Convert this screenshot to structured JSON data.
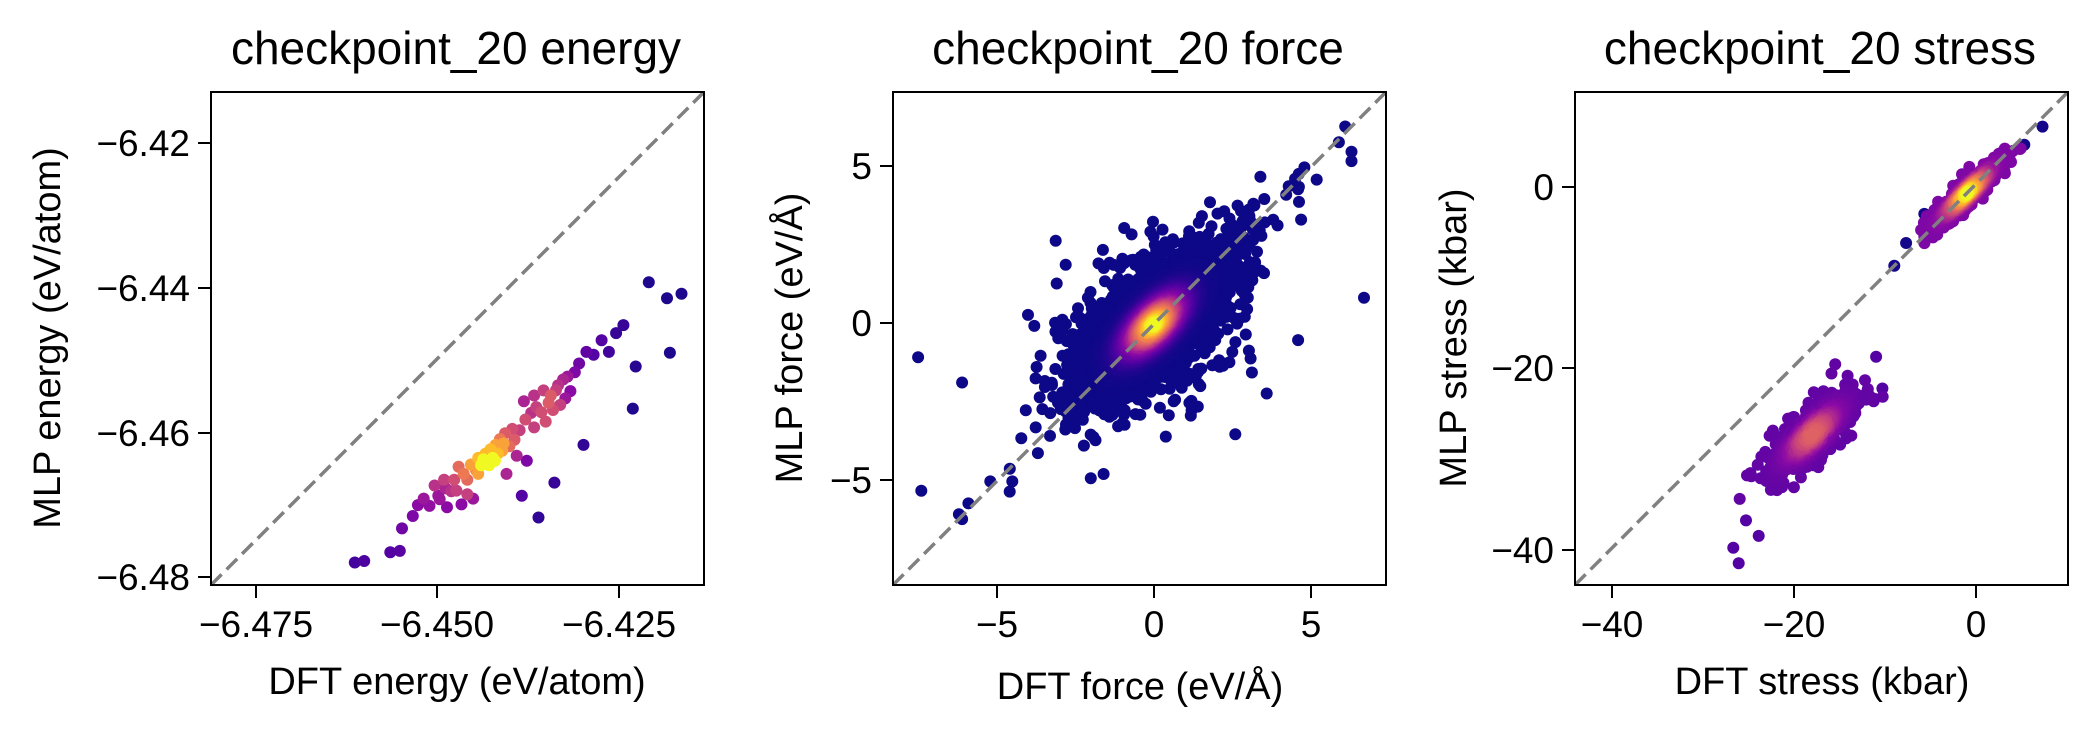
{
  "chart_data": [
    {
      "type": "scatter",
      "title": "checkpoint_20 energy",
      "xlabel": "DFT energy (eV/atom)",
      "ylabel": "MLP energy (eV/atom)",
      "xlim": [
        -6.4813,
        -6.4134
      ],
      "ylim": [
        -6.4813,
        -6.4134
      ],
      "xticks": [
        -6.475,
        -6.45,
        -6.425
      ],
      "xtick_labels": [
        "−6.475",
        "−6.450",
        "−6.425"
      ],
      "yticks": [
        -6.48,
        -6.46,
        -6.44,
        -6.42
      ],
      "ytick_labels": [
        "−6.48",
        "−6.46",
        "−6.44",
        "−6.42"
      ],
      "colormap": "plasma (color = point density)",
      "reference_line": "y = x (grey dashed)",
      "points": [
        [
          -6.4615,
          -6.4782,
          0.15
        ],
        [
          -6.4602,
          -6.478,
          0.18
        ],
        [
          -6.4566,
          -6.4768,
          0.2
        ],
        [
          -6.4553,
          -6.4766,
          0.22
        ],
        [
          -6.455,
          -6.4735,
          0.3
        ],
        [
          -6.4535,
          -6.4718,
          0.35
        ],
        [
          -6.4528,
          -6.4703,
          0.4
        ],
        [
          -6.452,
          -6.4694,
          0.45
        ],
        [
          -6.4512,
          -6.4704,
          0.42
        ],
        [
          -6.4505,
          -6.4676,
          0.55
        ],
        [
          -6.4498,
          -6.4695,
          0.45
        ],
        [
          -6.4492,
          -6.4668,
          0.6
        ],
        [
          -6.4488,
          -6.4706,
          0.4
        ],
        [
          -6.4482,
          -6.4684,
          0.55
        ],
        [
          -6.4478,
          -6.4668,
          0.65
        ],
        [
          -6.4472,
          -6.465,
          0.75
        ],
        [
          -6.4468,
          -6.4702,
          0.4
        ],
        [
          -6.4465,
          -6.466,
          0.8
        ],
        [
          -6.446,
          -6.4668,
          0.75
        ],
        [
          -6.4455,
          -6.4647,
          0.9
        ],
        [
          -6.4452,
          -6.4694,
          0.45
        ],
        [
          -6.4448,
          -6.4655,
          0.85
        ],
        [
          -6.4445,
          -6.4638,
          0.95
        ],
        [
          -6.4441,
          -6.4648,
          1.0
        ],
        [
          -6.4438,
          -6.464,
          1.0
        ],
        [
          -6.4435,
          -6.4632,
          0.95
        ],
        [
          -6.4431,
          -6.4646,
          1.0
        ],
        [
          -6.4428,
          -6.4626,
          0.95
        ],
        [
          -6.4425,
          -6.4638,
          1.0
        ],
        [
          -6.4421,
          -6.462,
          0.9
        ],
        [
          -6.4418,
          -6.4632,
          0.95
        ],
        [
          -6.4415,
          -6.4612,
          0.8
        ],
        [
          -6.4412,
          -6.4628,
          0.9
        ],
        [
          -6.4408,
          -6.4604,
          0.7
        ],
        [
          -6.4406,
          -6.466,
          0.5
        ],
        [
          -6.4402,
          -6.4622,
          0.75
        ],
        [
          -6.4398,
          -6.4598,
          0.65
        ],
        [
          -6.4395,
          -6.4613,
          0.7
        ],
        [
          -6.4392,
          -6.4635,
          0.5
        ],
        [
          -6.4388,
          -6.46,
          0.6
        ],
        [
          -6.4385,
          -6.469,
          0.2
        ],
        [
          -6.4382,
          -6.456,
          0.5
        ],
        [
          -6.4378,
          -6.4642,
          0.35
        ],
        [
          -6.4372,
          -6.4576,
          0.55
        ],
        [
          -6.4368,
          -6.4552,
          0.55
        ],
        [
          -6.4365,
          -6.4568,
          0.6
        ],
        [
          -6.4362,
          -6.472,
          0.1
        ],
        [
          -6.4358,
          -6.4575,
          0.65
        ],
        [
          -6.4355,
          -6.4545,
          0.6
        ],
        [
          -6.4352,
          -6.4588,
          0.65
        ],
        [
          -6.4348,
          -6.4562,
          0.7
        ],
        [
          -6.4345,
          -6.4552,
          0.7
        ],
        [
          -6.4342,
          -6.4572,
          0.65
        ],
        [
          -6.434,
          -6.4672,
          0.12
        ],
        [
          -6.4338,
          -6.4545,
          0.6
        ],
        [
          -6.4335,
          -6.4538,
          0.55
        ],
        [
          -6.4332,
          -6.4565,
          0.6
        ],
        [
          -6.4328,
          -6.453,
          0.5
        ],
        [
          -6.4325,
          -6.4556,
          0.45
        ],
        [
          -6.4322,
          -6.4526,
          0.45
        ],
        [
          -6.4318,
          -6.4546,
          0.4
        ],
        [
          -6.4312,
          -6.452,
          0.35
        ],
        [
          -6.4306,
          -6.4508,
          0.3
        ],
        [
          -6.43,
          -6.462,
          0.1
        ],
        [
          -6.4296,
          -6.4492,
          0.25
        ],
        [
          -6.4286,
          -6.4496,
          0.2
        ],
        [
          -6.4275,
          -6.4476,
          0.2
        ],
        [
          -6.4265,
          -6.4492,
          0.15
        ],
        [
          -6.4255,
          -6.4466,
          0.12
        ],
        [
          -6.4245,
          -6.4455,
          0.12
        ],
        [
          -6.4232,
          -6.457,
          0.05
        ],
        [
          -6.4228,
          -6.4512,
          0.08
        ],
        [
          -6.421,
          -6.4396,
          0.05
        ],
        [
          -6.4185,
          -6.4418,
          0.05
        ],
        [
          -6.4181,
          -6.4493,
          0.05
        ],
        [
          -6.4165,
          -6.4412,
          0.05
        ],
        [
          -6.443,
          -6.4648,
          1.0
        ],
        [
          -6.4422,
          -6.4642,
          1.0
        ],
        [
          -6.4445,
          -6.466,
          0.9
        ],
        [
          -6.441,
          -6.4618,
          0.9
        ],
        [
          -6.446,
          -6.4688,
          0.6
        ],
        [
          -6.4475,
          -6.4683,
          0.6
        ],
        [
          -6.438,
          -6.4585,
          0.65
        ],
        [
          -6.4368,
          -6.4596,
          0.6
        ],
        [
          -6.449,
          -6.468,
          0.5
        ],
        [
          -6.45,
          -6.469,
          0.45
        ]
      ]
    },
    {
      "type": "scatter",
      "title": "checkpoint_20 force",
      "xlabel": "DFT force (eV/Å)",
      "ylabel": "MLP force (eV/Å)",
      "xlim": [
        -8.3,
        7.4
      ],
      "ylim": [
        -8.3,
        7.4
      ],
      "xticks": [
        -5,
        0,
        5
      ],
      "xtick_labels": [
        "−5",
        "0",
        "5"
      ],
      "yticks": [
        -5,
        0,
        5
      ],
      "ytick_labels": [
        "−5",
        "0",
        "5"
      ],
      "colormap": "plasma (color = point density)",
      "reference_line": "y = x (grey dashed)",
      "distribution": {
        "count": 4200,
        "center": [
          0,
          0
        ],
        "spread_along_diagonal": 1.35,
        "spread_across_diagonal": 0.6
      },
      "outliers": [
        [
          -7.5,
          -1.05
        ],
        [
          -6.1,
          -1.85
        ],
        [
          -4.0,
          0.3
        ],
        [
          -3.8,
          -0.05
        ],
        [
          -6.2,
          -6.05
        ],
        [
          -6.1,
          -6.2
        ],
        [
          -5.9,
          -5.7
        ],
        [
          -7.4,
          -5.3
        ],
        [
          -5.2,
          -5.0
        ],
        [
          -3.6,
          -1.0
        ],
        [
          -2.8,
          1.9
        ],
        [
          2.6,
          -3.5
        ],
        [
          3.6,
          -2.2
        ],
        [
          4.6,
          -0.5
        ],
        [
          6.7,
          0.85
        ],
        [
          6.3,
          5.5
        ],
        [
          6.3,
          5.2
        ],
        [
          6.1,
          6.3
        ],
        [
          5.9,
          5.8
        ],
        [
          4.8,
          5.0
        ],
        [
          4.6,
          4.3
        ],
        [
          4.3,
          4.4
        ],
        [
          3.4,
          4.7
        ],
        [
          -2.0,
          -4.9
        ],
        [
          -4.5,
          -5.0
        ]
      ]
    },
    {
      "type": "scatter",
      "title": "checkpoint_20 stress",
      "xlabel": "DFT stress (kbar)",
      "ylabel": "MLP stress (kbar)",
      "xlim": [
        -43.6,
        10.6
      ],
      "ylim": [
        -43.6,
        10.6
      ],
      "xticks": [
        -40,
        -20,
        0
      ],
      "xtick_labels": [
        "−40",
        "−20",
        "0"
      ],
      "yticks": [
        -40,
        -20,
        0
      ],
      "ytick_labels": [
        "−40",
        "−20",
        "0"
      ],
      "colormap": "plasma (color = point density)",
      "reference_line": "y = x (grey dashed)",
      "clusters": [
        {
          "count": 700,
          "center": [
            -0.5,
            -0.5
          ],
          "spread_along_diagonal": 2.6,
          "spread_across_diagonal": 0.55,
          "max_density": 1.0
        },
        {
          "count": 600,
          "center": [
            -17.5,
            -27.0
          ],
          "spread_along_diagonal": 3.2,
          "spread_across_diagonal": 1.1,
          "max_density": 0.72
        }
      ],
      "outliers": [
        [
          -26.2,
          -39.5
        ],
        [
          -25.6,
          -41.2
        ],
        [
          -24.8,
          -36.5
        ],
        [
          -23.4,
          -38.2
        ],
        [
          -9.8,
          -22.0
        ],
        [
          -10.5,
          -18.5
        ],
        [
          -7.2,
          -6.0
        ],
        [
          -8.5,
          -8.5
        ],
        [
          7.8,
          6.8
        ],
        [
          5.8,
          4.8
        ],
        [
          -5.2,
          -2.8
        ]
      ]
    }
  ]
}
